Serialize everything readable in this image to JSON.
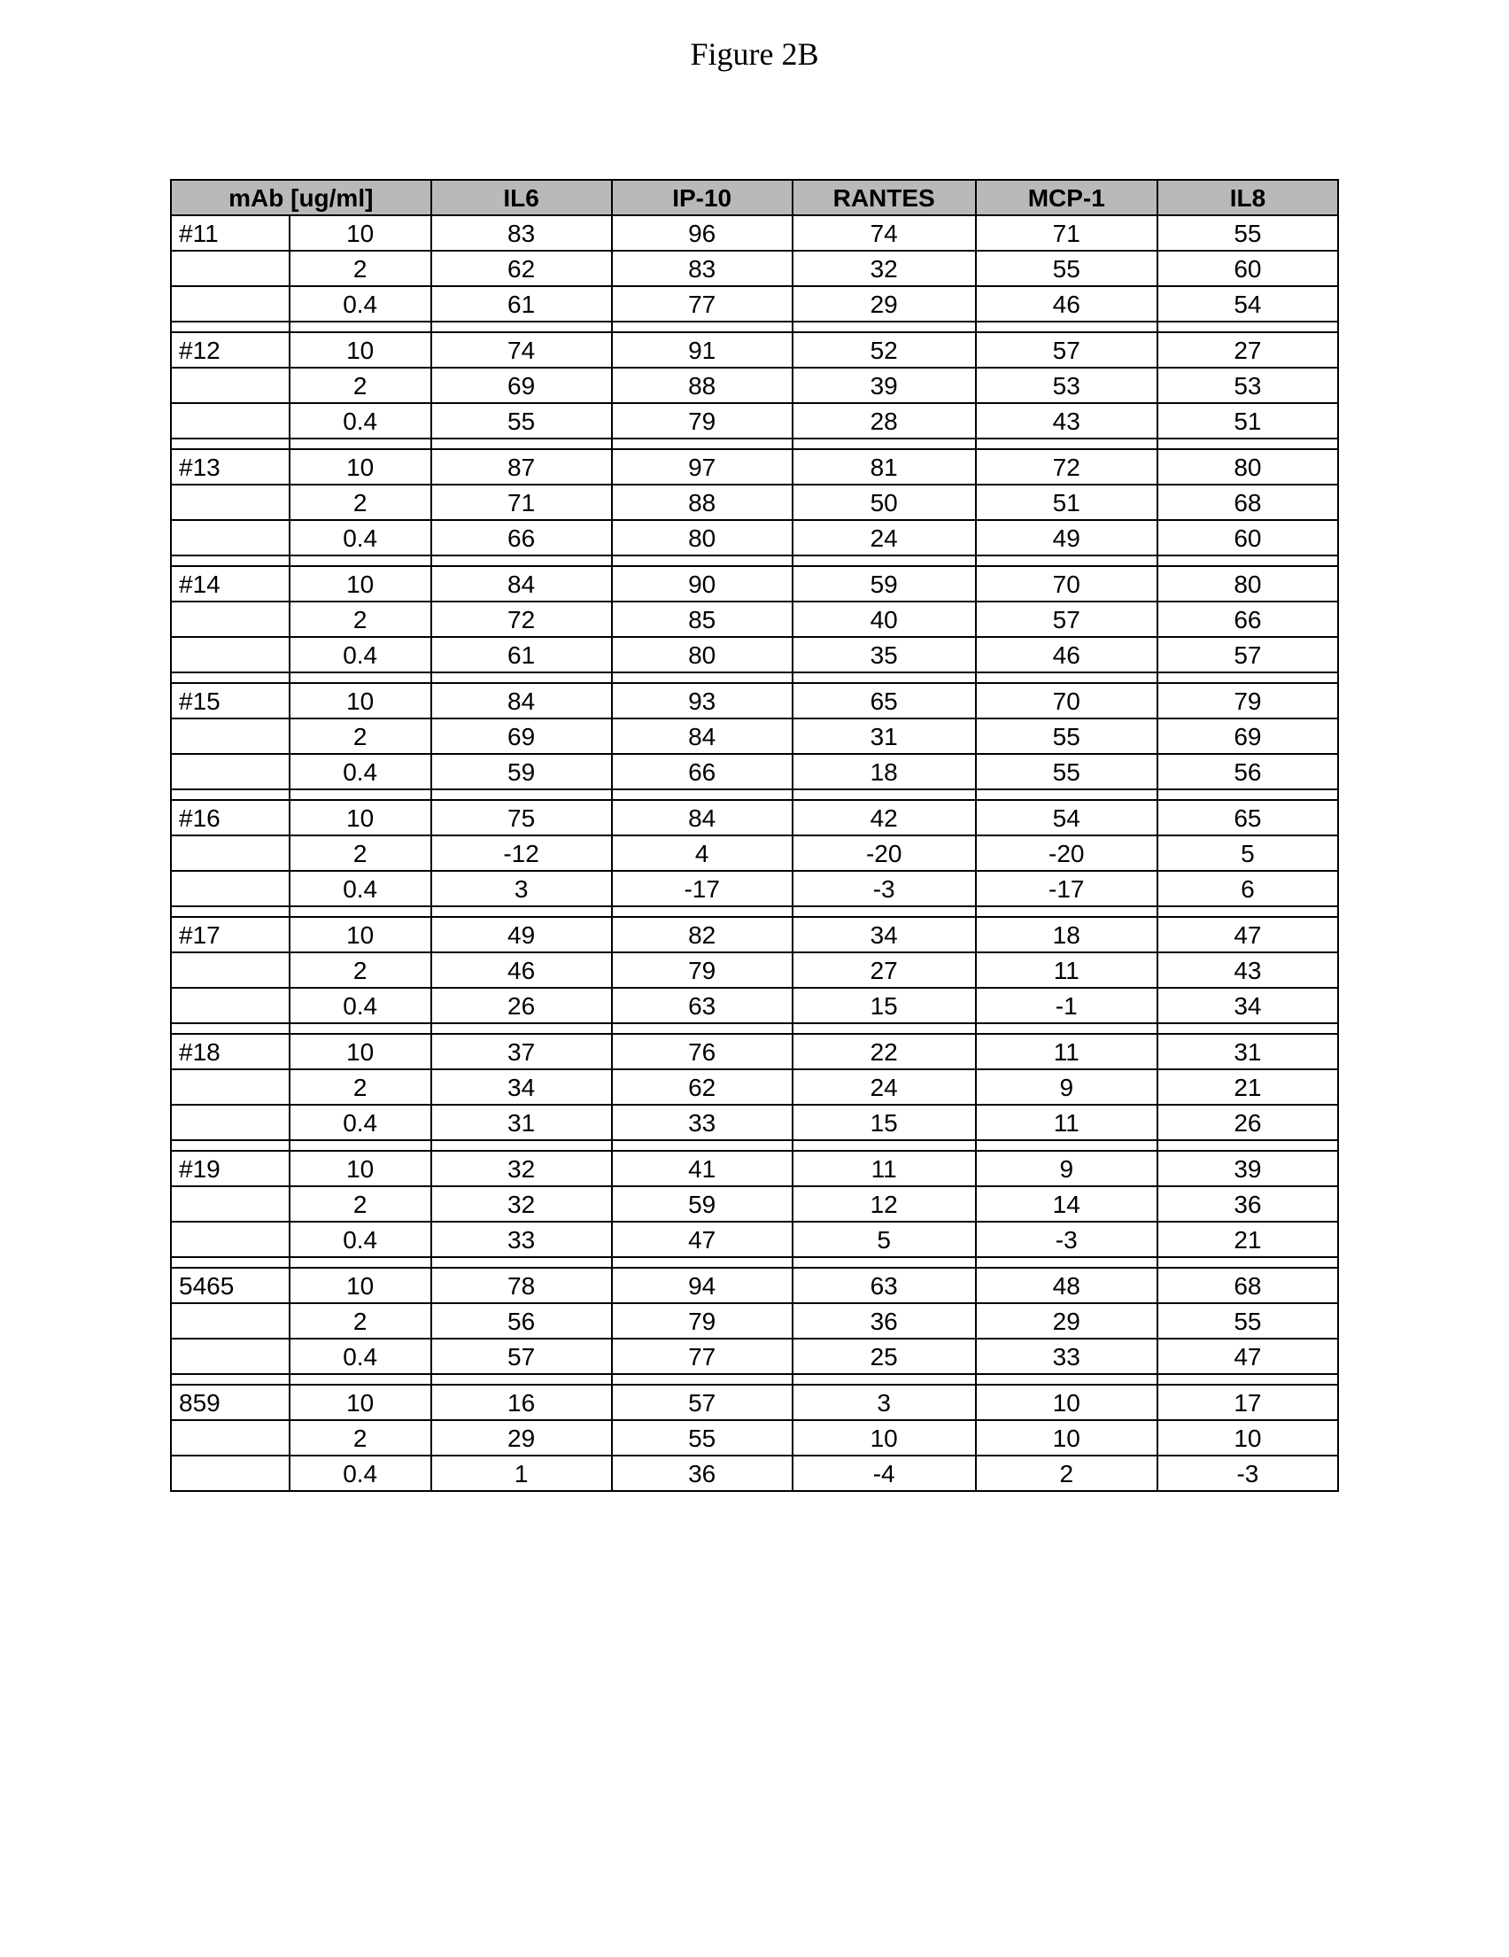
{
  "figure_title": "Figure 2B",
  "table": {
    "columns": [
      "mAb [ug/ml]",
      "IL6",
      "IP-10",
      "RANTES",
      "MCP-1",
      "IL8"
    ],
    "header_bg": "#b9b9b9",
    "border_color": "#000000",
    "groups": [
      {
        "label": "#11",
        "rows": [
          {
            "conc": "10",
            "v": [
              "83",
              "96",
              "74",
              "71",
              "55"
            ]
          },
          {
            "conc": "2",
            "v": [
              "62",
              "83",
              "32",
              "55",
              "60"
            ]
          },
          {
            "conc": "0.4",
            "v": [
              "61",
              "77",
              "29",
              "46",
              "54"
            ]
          }
        ]
      },
      {
        "label": "#12",
        "rows": [
          {
            "conc": "10",
            "v": [
              "74",
              "91",
              "52",
              "57",
              "27"
            ]
          },
          {
            "conc": "2",
            "v": [
              "69",
              "88",
              "39",
              "53",
              "53"
            ]
          },
          {
            "conc": "0.4",
            "v": [
              "55",
              "79",
              "28",
              "43",
              "51"
            ]
          }
        ]
      },
      {
        "label": "#13",
        "rows": [
          {
            "conc": "10",
            "v": [
              "87",
              "97",
              "81",
              "72",
              "80"
            ]
          },
          {
            "conc": "2",
            "v": [
              "71",
              "88",
              "50",
              "51",
              "68"
            ]
          },
          {
            "conc": "0.4",
            "v": [
              "66",
              "80",
              "24",
              "49",
              "60"
            ]
          }
        ]
      },
      {
        "label": "#14",
        "rows": [
          {
            "conc": "10",
            "v": [
              "84",
              "90",
              "59",
              "70",
              "80"
            ]
          },
          {
            "conc": "2",
            "v": [
              "72",
              "85",
              "40",
              "57",
              "66"
            ]
          },
          {
            "conc": "0.4",
            "v": [
              "61",
              "80",
              "35",
              "46",
              "57"
            ]
          }
        ]
      },
      {
        "label": "#15",
        "rows": [
          {
            "conc": "10",
            "v": [
              "84",
              "93",
              "65",
              "70",
              "79"
            ]
          },
          {
            "conc": "2",
            "v": [
              "69",
              "84",
              "31",
              "55",
              "69"
            ]
          },
          {
            "conc": "0.4",
            "v": [
              "59",
              "66",
              "18",
              "55",
              "56"
            ]
          }
        ]
      },
      {
        "label": "#16",
        "rows": [
          {
            "conc": "10",
            "v": [
              "75",
              "84",
              "42",
              "54",
              "65"
            ]
          },
          {
            "conc": "2",
            "v": [
              "-12",
              "4",
              "-20",
              "-20",
              "5"
            ]
          },
          {
            "conc": "0.4",
            "v": [
              "3",
              "-17",
              "-3",
              "-17",
              "6"
            ]
          }
        ]
      },
      {
        "label": "#17",
        "rows": [
          {
            "conc": "10",
            "v": [
              "49",
              "82",
              "34",
              "18",
              "47"
            ]
          },
          {
            "conc": "2",
            "v": [
              "46",
              "79",
              "27",
              "11",
              "43"
            ]
          },
          {
            "conc": "0.4",
            "v": [
              "26",
              "63",
              "15",
              "-1",
              "34"
            ]
          }
        ]
      },
      {
        "label": "#18",
        "rows": [
          {
            "conc": "10",
            "v": [
              "37",
              "76",
              "22",
              "11",
              "31"
            ]
          },
          {
            "conc": "2",
            "v": [
              "34",
              "62",
              "24",
              "9",
              "21"
            ]
          },
          {
            "conc": "0.4",
            "v": [
              "31",
              "33",
              "15",
              "11",
              "26"
            ]
          }
        ]
      },
      {
        "label": "#19",
        "rows": [
          {
            "conc": "10",
            "v": [
              "32",
              "41",
              "11",
              "9",
              "39"
            ]
          },
          {
            "conc": "2",
            "v": [
              "32",
              "59",
              "12",
              "14",
              "36"
            ]
          },
          {
            "conc": "0.4",
            "v": [
              "33",
              "47",
              "5",
              "-3",
              "21"
            ]
          }
        ]
      },
      {
        "label": "5465",
        "rows": [
          {
            "conc": "10",
            "v": [
              "78",
              "94",
              "63",
              "48",
              "68"
            ]
          },
          {
            "conc": "2",
            "v": [
              "56",
              "79",
              "36",
              "29",
              "55"
            ]
          },
          {
            "conc": "0.4",
            "v": [
              "57",
              "77",
              "25",
              "33",
              "47"
            ]
          }
        ]
      },
      {
        "label": "859",
        "rows": [
          {
            "conc": "10",
            "v": [
              "16",
              "57",
              "3",
              "10",
              "17"
            ]
          },
          {
            "conc": "2",
            "v": [
              "29",
              "55",
              "10",
              "10",
              "10"
            ]
          },
          {
            "conc": "0.4",
            "v": [
              "1",
              "36",
              "-4",
              "2",
              "-3"
            ]
          }
        ]
      }
    ]
  }
}
